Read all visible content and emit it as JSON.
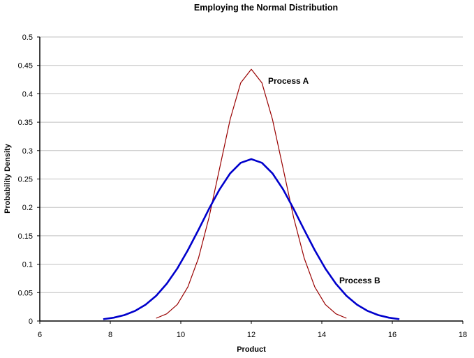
{
  "chart_data": {
    "type": "line",
    "title": "Employing the Normal Distribution",
    "xlabel": "Product",
    "ylabel": "Probability Density",
    "xlim": [
      6,
      18
    ],
    "ylim": [
      0,
      0.5
    ],
    "xticks": [
      "6",
      "8",
      "10",
      "12",
      "14",
      "16",
      "18"
    ],
    "yticks": [
      "0",
      "0.05",
      "0.1",
      "0.15",
      "0.2",
      "0.25",
      "0.3",
      "0.35",
      "0.4",
      "0.45",
      "0.5"
    ],
    "grid": "horizontal",
    "legend": "none (inline labels)",
    "series": [
      {
        "name": "Process A",
        "color": "#990000",
        "x": [
          9.3,
          9.6,
          9.9,
          10.2,
          10.5,
          10.8,
          11.1,
          11.4,
          11.7,
          12.0,
          12.3,
          12.6,
          12.9,
          13.2,
          13.5,
          13.8,
          14.1,
          14.4,
          14.7
        ],
        "y": [
          0.0049,
          0.0127,
          0.0291,
          0.06,
          0.1106,
          0.1823,
          0.2689,
          0.355,
          0.4193,
          0.4433,
          0.4193,
          0.355,
          0.2689,
          0.1823,
          0.1106,
          0.06,
          0.0291,
          0.0127,
          0.0049
        ]
      },
      {
        "name": "Process B",
        "color": "#0000CC",
        "x": [
          7.8,
          8.1,
          8.4,
          8.7,
          9.0,
          9.3,
          9.6,
          9.9,
          10.2,
          10.5,
          10.8,
          11.1,
          11.4,
          11.7,
          12.0,
          12.3,
          12.6,
          12.9,
          13.2,
          13.5,
          13.8,
          14.1,
          14.4,
          14.7,
          15.0,
          15.3,
          15.6,
          15.9,
          16.2
        ],
        "y": [
          0.0032,
          0.0059,
          0.0105,
          0.0177,
          0.0287,
          0.0444,
          0.0656,
          0.0925,
          0.1247,
          0.1605,
          0.1974,
          0.2318,
          0.26,
          0.2785,
          0.285,
          0.2785,
          0.26,
          0.2318,
          0.1974,
          0.1605,
          0.1247,
          0.0925,
          0.0656,
          0.0444,
          0.0287,
          0.0177,
          0.0105,
          0.0059,
          0.0032
        ]
      }
    ]
  }
}
